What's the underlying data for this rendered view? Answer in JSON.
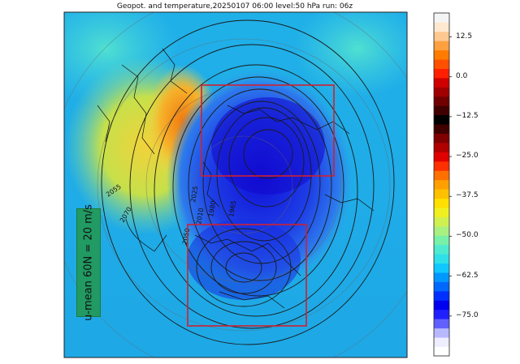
{
  "title": "Geopot. and temperature,20250107 06:00 level:50 hPa run: 06z",
  "annotation": "u-mean 60N = 20 m/s",
  "colorbar": {
    "ticks": [
      "12.5",
      "0.0",
      "−12.5",
      "−25.0",
      "−37.5",
      "−50.0",
      "−62.5",
      "−75.0"
    ],
    "tick_values": [
      12.5,
      0.0,
      -12.5,
      -25.0,
      -37.5,
      -50.0,
      -62.5,
      -75.0
    ],
    "range": [
      -87.5,
      20.0
    ]
  },
  "contour_labels": [
    "2055",
    "2070",
    "2050",
    "2025",
    "2010",
    "1980",
    "1965"
  ],
  "boxes": [
    "upper-box",
    "lower-box"
  ],
  "box_color": "#d02030"
}
